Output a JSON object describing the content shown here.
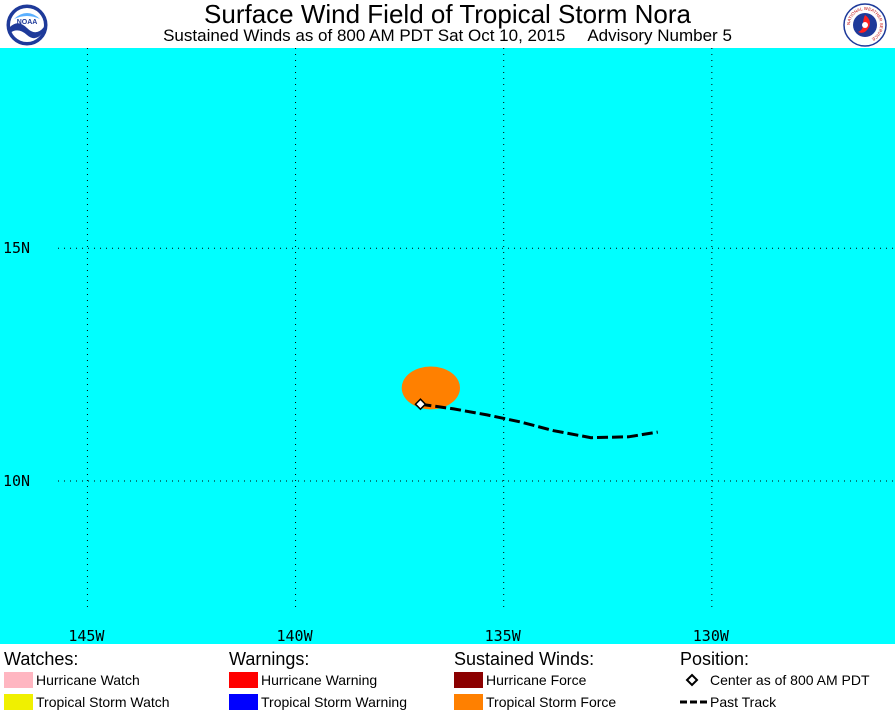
{
  "header": {
    "title": "Surface Wind Field of Tropical Storm Nora",
    "subtitle_time": "Sustained Winds as of 800 AM PDT Sat Oct 10, 2015",
    "subtitle_advisory": "Advisory Number 5",
    "left_logo_icon": "noaa-logo-icon",
    "right_logo_icon": "nws-logo-icon",
    "noaa_logo_text": "NOAA",
    "nws_logo_text": "NATIONAL WEATHER SERVICE"
  },
  "map": {
    "ocean_color": "#00ffff",
    "extent": {
      "lon_west": -147.1,
      "lon_east": -125.6,
      "lat_south": 6.5,
      "lat_north": 19.3
    },
    "longitude_labels": [
      {
        "lon": -145,
        "label": "145W"
      },
      {
        "lon": -140,
        "label": "140W"
      },
      {
        "lon": -135,
        "label": "135W"
      },
      {
        "lon": -130,
        "label": "130W"
      }
    ],
    "latitude_labels": [
      {
        "lat": 15,
        "label": "15N"
      },
      {
        "lat": 10,
        "label": "10N"
      }
    ],
    "wind_field": {
      "category": "Tropical Storm Force",
      "color": "#ff8000",
      "center_lon": -136.75,
      "center_lat": 12.0,
      "lon_radius": 0.7,
      "lat_radius": 0.46
    },
    "storm_center": {
      "lon": -137.0,
      "lat": 11.65
    },
    "past_track": [
      {
        "lon": -137.0,
        "lat": 11.65
      },
      {
        "lon": -136.2,
        "lat": 11.55
      },
      {
        "lon": -135.4,
        "lat": 11.42
      },
      {
        "lon": -134.6,
        "lat": 11.27
      },
      {
        "lon": -133.8,
        "lat": 11.08
      },
      {
        "lon": -132.9,
        "lat": 10.93
      },
      {
        "lon": -132.0,
        "lat": 10.95
      },
      {
        "lon": -131.3,
        "lat": 11.05
      }
    ]
  },
  "legend": {
    "watches": {
      "heading": "Watches:",
      "items": [
        {
          "label": "Hurricane Watch",
          "color": "#ffb6c1"
        },
        {
          "label": "Tropical Storm Watch",
          "color": "#f0f000"
        }
      ]
    },
    "warnings": {
      "heading": "Warnings:",
      "items": [
        {
          "label": "Hurricane Warning",
          "color": "#ff0000"
        },
        {
          "label": "Tropical Storm Warning",
          "color": "#0000ff"
        }
      ]
    },
    "sustained_winds": {
      "heading": "Sustained Winds:",
      "items": [
        {
          "label": "Hurricane Force",
          "color": "#8b0000"
        },
        {
          "label": "Tropical Storm Force",
          "color": "#ff8000"
        }
      ]
    },
    "position": {
      "heading": "Position:",
      "items": [
        {
          "label": "Center as of 800 AM PDT",
          "icon": "diamond-icon"
        },
        {
          "label": "Past Track",
          "icon": "dashed-line-icon"
        }
      ]
    }
  }
}
